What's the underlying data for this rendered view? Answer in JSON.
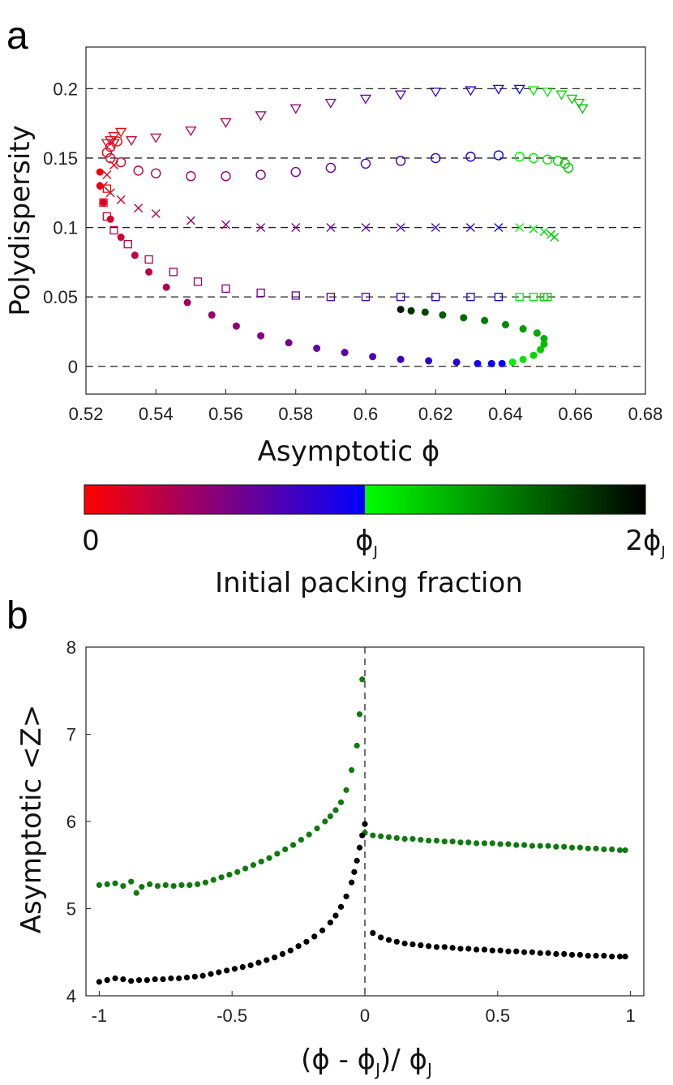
{
  "chart_data": [
    {
      "panel": "a",
      "type": "scatter",
      "xlabel": "Asymptotic ϕ",
      "ylabel": "Polydispersity",
      "xlim": [
        0.52,
        0.68
      ],
      "ylim": [
        -0.02,
        0.23
      ],
      "xticks": [
        "0.52",
        "0.54",
        "0.56",
        "0.58",
        "0.6",
        "0.62",
        "0.64",
        "0.66",
        "0.68"
      ],
      "yticks": [
        "0",
        "0.05",
        "0.1",
        "0.15",
        "0.2"
      ],
      "reference_lines": [
        0,
        0.05,
        0.1,
        0.15,
        0.2
      ],
      "grid": false,
      "series": [
        {
          "marker": "triangle-down",
          "target_polydispersity": 0.2,
          "x": [
            0.53,
            0.528,
            0.527,
            0.526,
            0.528,
            0.533,
            0.54,
            0.55,
            0.56,
            0.57,
            0.58,
            0.59,
            0.6,
            0.61,
            0.62,
            0.63,
            0.638,
            0.644,
            0.648,
            0.652,
            0.656,
            0.659,
            0.661,
            0.662
          ],
          "y": [
            0.169,
            0.166,
            0.163,
            0.161,
            0.161,
            0.163,
            0.165,
            0.17,
            0.176,
            0.181,
            0.186,
            0.19,
            0.193,
            0.196,
            0.198,
            0.199,
            0.2,
            0.2,
            0.199,
            0.198,
            0.196,
            0.193,
            0.19,
            0.186
          ],
          "color_fraction": [
            0.02,
            0.06,
            0.1,
            0.14,
            0.18,
            0.22,
            0.26,
            0.31,
            0.36,
            0.41,
            0.46,
            0.53,
            0.6,
            0.68,
            0.76,
            0.84,
            0.92,
            1.0,
            1.05,
            1.1,
            1.14,
            1.18,
            1.22,
            1.26
          ]
        },
        {
          "marker": "circle-open",
          "target_polydispersity": 0.15,
          "x": [
            0.529,
            0.527,
            0.526,
            0.527,
            0.53,
            0.535,
            0.54,
            0.55,
            0.56,
            0.57,
            0.58,
            0.59,
            0.6,
            0.61,
            0.62,
            0.63,
            0.638,
            0.644,
            0.648,
            0.652,
            0.655,
            0.657,
            0.658
          ],
          "y": [
            0.162,
            0.158,
            0.154,
            0.15,
            0.147,
            0.141,
            0.139,
            0.137,
            0.137,
            0.138,
            0.14,
            0.143,
            0.146,
            0.148,
            0.15,
            0.151,
            0.152,
            0.151,
            0.15,
            0.149,
            0.148,
            0.146,
            0.143
          ],
          "color_fraction": [
            0.02,
            0.06,
            0.1,
            0.14,
            0.18,
            0.24,
            0.3,
            0.36,
            0.42,
            0.48,
            0.54,
            0.6,
            0.66,
            0.72,
            0.8,
            0.88,
            0.96,
            1.02,
            1.06,
            1.1,
            1.14,
            1.18,
            1.22
          ]
        },
        {
          "marker": "x",
          "target_polydispersity": 0.1,
          "x": [
            0.528,
            0.526,
            0.525,
            0.527,
            0.53,
            0.535,
            0.54,
            0.55,
            0.56,
            0.57,
            0.58,
            0.59,
            0.6,
            0.61,
            0.62,
            0.63,
            0.638,
            0.644,
            0.648,
            0.651,
            0.653,
            0.654
          ],
          "y": [
            0.145,
            0.138,
            0.13,
            0.125,
            0.12,
            0.114,
            0.11,
            0.105,
            0.102,
            0.1,
            0.1,
            0.1,
            0.1,
            0.1,
            0.1,
            0.1,
            0.1,
            0.1,
            0.099,
            0.097,
            0.095,
            0.093
          ],
          "color_fraction": [
            0.02,
            0.06,
            0.1,
            0.14,
            0.18,
            0.24,
            0.3,
            0.36,
            0.42,
            0.48,
            0.54,
            0.6,
            0.66,
            0.72,
            0.8,
            0.88,
            0.96,
            1.02,
            1.06,
            1.1,
            1.14,
            1.18
          ]
        },
        {
          "marker": "square-open",
          "target_polydispersity": 0.05,
          "x": [
            0.526,
            0.525,
            0.526,
            0.528,
            0.532,
            0.538,
            0.545,
            0.552,
            0.56,
            0.57,
            0.58,
            0.59,
            0.6,
            0.61,
            0.62,
            0.63,
            0.638,
            0.644,
            0.648,
            0.651,
            0.652
          ],
          "y": [
            0.128,
            0.118,
            0.108,
            0.098,
            0.088,
            0.077,
            0.068,
            0.061,
            0.056,
            0.053,
            0.051,
            0.05,
            0.05,
            0.05,
            0.05,
            0.05,
            0.05,
            0.05,
            0.05,
            0.05,
            0.05
          ],
          "color_fraction": [
            0.02,
            0.08,
            0.14,
            0.2,
            0.26,
            0.32,
            0.38,
            0.44,
            0.5,
            0.56,
            0.62,
            0.68,
            0.74,
            0.8,
            0.86,
            0.92,
            0.98,
            1.04,
            1.08,
            1.12,
            1.16
          ]
        },
        {
          "marker": "circle-filled",
          "target_polydispersity": 0,
          "x": [
            0.524,
            0.524,
            0.525,
            0.527,
            0.53,
            0.534,
            0.538,
            0.543,
            0.549,
            0.556,
            0.563,
            0.57,
            0.578,
            0.586,
            0.594,
            0.602,
            0.61,
            0.618,
            0.626,
            0.632,
            0.636,
            0.639,
            0.642,
            0.645,
            0.648,
            0.65,
            0.651,
            0.651,
            0.649,
            0.645,
            0.64,
            0.634,
            0.628,
            0.622,
            0.617,
            0.613,
            0.61
          ],
          "y": [
            0.14,
            0.13,
            0.118,
            0.106,
            0.093,
            0.08,
            0.068,
            0.057,
            0.046,
            0.037,
            0.029,
            0.022,
            0.017,
            0.013,
            0.01,
            0.007,
            0.005,
            0.004,
            0.003,
            0.002,
            0.002,
            0.002,
            0.003,
            0.005,
            0.008,
            0.012,
            0.016,
            0.02,
            0.024,
            0.027,
            0.03,
            0.033,
            0.035,
            0.037,
            0.039,
            0.04,
            0.041
          ],
          "color_fraction": [
            0.04,
            0.08,
            0.12,
            0.16,
            0.2,
            0.24,
            0.28,
            0.32,
            0.36,
            0.4,
            0.45,
            0.5,
            0.55,
            0.6,
            0.65,
            0.7,
            0.75,
            0.8,
            0.85,
            0.9,
            0.95,
            1.0,
            1.05,
            1.1,
            1.15,
            1.2,
            1.25,
            1.3,
            1.35,
            1.4,
            1.46,
            1.52,
            1.58,
            1.64,
            1.72,
            1.8,
            1.9
          ]
        }
      ]
    },
    {
      "panel": "a-colorbar",
      "type": "colorbar",
      "label": "Initial packing fraction",
      "tick_labels": [
        "0",
        "ϕ",
        "2ϕ"
      ],
      "tick_subscript": "J",
      "colors": [
        "#ff0000",
        "#0000ff",
        "#00ff00",
        "#000000"
      ]
    },
    {
      "panel": "b",
      "type": "scatter",
      "xlabel": "(ϕ - ϕ",
      "xlabel_mid": ")/ ϕ",
      "xlabel_subscript": "J",
      "ylabel": "Asymptotic <Z>",
      "xlim": [
        -1.05,
        1.05
      ],
      "ylim": [
        4,
        8
      ],
      "xticks": [
        "-1",
        "-0.5",
        "0",
        "0.5",
        "1"
      ],
      "yticks": [
        "4",
        "5",
        "6",
        "7",
        "8"
      ],
      "vertical_line_x": 0,
      "grid": false,
      "series": [
        {
          "color": "#107a10",
          "x": [
            -1.0,
            -0.97,
            -0.94,
            -0.91,
            -0.88,
            -0.86,
            -0.84,
            -0.81,
            -0.78,
            -0.75,
            -0.72,
            -0.69,
            -0.66,
            -0.63,
            -0.6,
            -0.57,
            -0.54,
            -0.51,
            -0.48,
            -0.45,
            -0.42,
            -0.39,
            -0.36,
            -0.33,
            -0.3,
            -0.27,
            -0.24,
            -0.21,
            -0.18,
            -0.15,
            -0.13,
            -0.11,
            -0.09,
            -0.07,
            -0.05,
            -0.03,
            -0.02,
            -0.01,
            0.0,
            0.03,
            0.06,
            0.09,
            0.12,
            0.15,
            0.18,
            0.21,
            0.24,
            0.27,
            0.3,
            0.33,
            0.36,
            0.39,
            0.42,
            0.45,
            0.48,
            0.51,
            0.54,
            0.57,
            0.6,
            0.63,
            0.66,
            0.69,
            0.72,
            0.75,
            0.78,
            0.81,
            0.84,
            0.87,
            0.9,
            0.93,
            0.96,
            0.98
          ],
          "y": [
            5.27,
            5.28,
            5.29,
            5.26,
            5.31,
            5.18,
            5.25,
            5.28,
            5.26,
            5.27,
            5.26,
            5.27,
            5.27,
            5.28,
            5.3,
            5.33,
            5.36,
            5.39,
            5.42,
            5.46,
            5.5,
            5.54,
            5.58,
            5.63,
            5.68,
            5.73,
            5.79,
            5.85,
            5.92,
            6.0,
            6.06,
            6.13,
            6.22,
            6.36,
            6.59,
            6.87,
            7.23,
            7.63,
            5.87,
            5.84,
            5.83,
            5.82,
            5.81,
            5.8,
            5.8,
            5.79,
            5.78,
            5.78,
            5.77,
            5.77,
            5.76,
            5.76,
            5.75,
            5.75,
            5.75,
            5.74,
            5.74,
            5.73,
            5.73,
            5.72,
            5.72,
            5.72,
            5.71,
            5.71,
            5.7,
            5.7,
            5.69,
            5.69,
            5.68,
            5.68,
            5.67,
            5.67
          ]
        },
        {
          "color": "#000000",
          "x": [
            -1.0,
            -0.97,
            -0.94,
            -0.91,
            -0.88,
            -0.85,
            -0.82,
            -0.79,
            -0.76,
            -0.73,
            -0.7,
            -0.67,
            -0.64,
            -0.61,
            -0.58,
            -0.55,
            -0.52,
            -0.49,
            -0.46,
            -0.43,
            -0.4,
            -0.37,
            -0.34,
            -0.31,
            -0.28,
            -0.25,
            -0.22,
            -0.19,
            -0.16,
            -0.13,
            -0.11,
            -0.09,
            -0.07,
            -0.05,
            -0.04,
            -0.03,
            -0.02,
            -0.01,
            0.0,
            0.03,
            0.06,
            0.09,
            0.12,
            0.15,
            0.18,
            0.21,
            0.24,
            0.27,
            0.3,
            0.33,
            0.36,
            0.39,
            0.42,
            0.45,
            0.48,
            0.51,
            0.54,
            0.57,
            0.6,
            0.63,
            0.66,
            0.69,
            0.72,
            0.75,
            0.78,
            0.81,
            0.84,
            0.87,
            0.9,
            0.93,
            0.96,
            0.98
          ],
          "y": [
            4.16,
            4.18,
            4.2,
            4.19,
            4.17,
            4.18,
            4.18,
            4.19,
            4.19,
            4.2,
            4.2,
            4.21,
            4.22,
            4.23,
            4.25,
            4.27,
            4.29,
            4.31,
            4.33,
            4.35,
            4.38,
            4.41,
            4.44,
            4.48,
            4.52,
            4.57,
            4.62,
            4.68,
            4.75,
            4.84,
            4.92,
            5.02,
            5.14,
            5.3,
            5.42,
            5.55,
            5.7,
            5.84,
            5.97,
            4.72,
            4.67,
            4.64,
            4.62,
            4.6,
            4.59,
            4.58,
            4.57,
            4.56,
            4.56,
            4.55,
            4.54,
            4.54,
            4.53,
            4.53,
            4.52,
            4.52,
            4.51,
            4.51,
            4.5,
            4.5,
            4.49,
            4.49,
            4.48,
            4.48,
            4.47,
            4.47,
            4.46,
            4.46,
            4.46,
            4.45,
            4.45,
            4.45
          ]
        }
      ]
    }
  ],
  "labels": {
    "panel_a": "a",
    "panel_b": "b"
  }
}
